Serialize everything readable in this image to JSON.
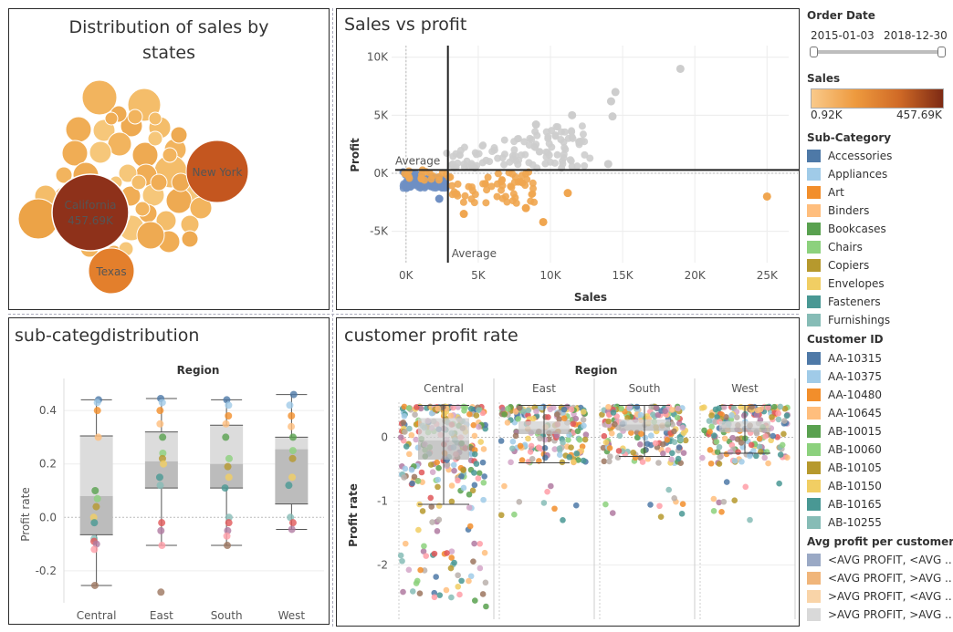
{
  "panels": {
    "bubbles": {
      "title_line1": "Distribution of sales by",
      "title_line2": "states",
      "labels": {
        "california": "California",
        "california_value": "457.69K",
        "new_york": "New York",
        "texas": "Texas"
      }
    },
    "scatter": {
      "title": "Sales vs profit",
      "xlabel": "Sales",
      "ylabel": "Profit",
      "avg_label_h": "Average",
      "avg_label_v": "Average"
    },
    "subcat": {
      "title": "sub-categdistribution",
      "header": "Region",
      "ylabel": "Profit rate"
    },
    "customer": {
      "title": "customer profit rate",
      "header": "Region",
      "ylabel": "Profit rate"
    }
  },
  "legend": {
    "order_date": {
      "title": "Order Date",
      "start": "2015-01-03",
      "end": "2018-12-30"
    },
    "sales": {
      "title": "Sales",
      "min": "0.92K",
      "max": "457.69K",
      "color_low": "#f9c98a",
      "color_high": "#7d2a14"
    },
    "subcategory": {
      "title": "Sub-Category",
      "items": [
        {
          "label": "Accessories",
          "color": "#4e79a7"
        },
        {
          "label": "Appliances",
          "color": "#a0cbe8"
        },
        {
          "label": "Art",
          "color": "#f28e2b"
        },
        {
          "label": "Binders",
          "color": "#ffbe7d"
        },
        {
          "label": "Bookcases",
          "color": "#59a14f"
        },
        {
          "label": "Chairs",
          "color": "#8cd17d"
        },
        {
          "label": "Copiers",
          "color": "#b6992d"
        },
        {
          "label": "Envelopes",
          "color": "#f1ce63"
        },
        {
          "label": "Fasteners",
          "color": "#499894"
        },
        {
          "label": "Furnishings",
          "color": "#86bcb6"
        }
      ]
    },
    "customer": {
      "title": "Customer ID",
      "items": [
        {
          "label": "AA-10315",
          "color": "#4e79a7"
        },
        {
          "label": "AA-10375",
          "color": "#a0cbe8"
        },
        {
          "label": "AA-10480",
          "color": "#f28e2b"
        },
        {
          "label": "AA-10645",
          "color": "#ffbe7d"
        },
        {
          "label": "AB-10015",
          "color": "#59a14f"
        },
        {
          "label": "AB-10060",
          "color": "#8cd17d"
        },
        {
          "label": "AB-10105",
          "color": "#b6992d"
        },
        {
          "label": "AB-10150",
          "color": "#f1ce63"
        },
        {
          "label": "AB-10165",
          "color": "#499894"
        },
        {
          "label": "AB-10255",
          "color": "#86bcb6"
        }
      ]
    },
    "avg_profit": {
      "title": "Avg profit per customer, ..",
      "items": [
        {
          "label": "<AVG PROFIT, <AVG ..",
          "color": "#9aa9c5"
        },
        {
          "label": "<AVG PROFIT, >AVG ..",
          "color": "#f0b57a"
        },
        {
          "label": ">AVG PROFIT, <AVG ..",
          "color": "#f9d4a8"
        },
        {
          "label": ">AVG PROFIT, >AVG ..",
          "color": "#d9d9d9"
        }
      ]
    }
  },
  "chart_data": [
    {
      "type": "scatter",
      "title": "Distribution of sales by states",
      "series": [
        {
          "name": "California",
          "values": [
            457.69
          ]
        },
        {
          "name": "New York",
          "values": [
            310.88
          ]
        },
        {
          "name": "Texas",
          "values": [
            170.19
          ]
        }
      ]
    },
    {
      "type": "scatter",
      "title": "Sales vs profit",
      "xlabel": "Sales",
      "ylabel": "Profit",
      "xlim": [
        -1000,
        26500
      ],
      "ylim": [
        -7700,
        11000
      ],
      "xticks": [
        "0K",
        "5K",
        "10K",
        "15K",
        "20K",
        "25K"
      ],
      "yticks": [
        "10K",
        "5K",
        "0K",
        "-5K"
      ],
      "average_x": 2900,
      "average_y": 280,
      "highlight_points": [
        {
          "x": 19000,
          "y": 9000,
          "group": ">AVG PROFIT, >AVG .."
        },
        {
          "x": 14500,
          "y": 7000,
          "group": ">AVG PROFIT, >AVG .."
        },
        {
          "x": 14200,
          "y": 6200,
          "group": ">AVG PROFIT, >AVG .."
        },
        {
          "x": 14300,
          "y": 4900,
          "group": ">AVG PROFIT, >AVG .."
        },
        {
          "x": 11500,
          "y": 5000,
          "group": ">AVG PROFIT, >AVG .."
        },
        {
          "x": 9000,
          "y": 4200,
          "group": ">AVG PROFIT, >AVG .."
        },
        {
          "x": 12000,
          "y": 2700,
          "group": ">AVG PROFIT, >AVG .."
        },
        {
          "x": 14000,
          "y": 800,
          "group": ">AVG PROFIT, >AVG .."
        },
        {
          "x": 25000,
          "y": -2000,
          "group": "<AVG PROFIT, >AVG .."
        },
        {
          "x": 9500,
          "y": -4200,
          "group": "<AVG PROFIT, >AVG .."
        },
        {
          "x": 11200,
          "y": -1700,
          "group": "<AVG PROFIT, >AVG .."
        },
        {
          "x": 8300,
          "y": -3000,
          "group": "<AVG PROFIT, >AVG .."
        },
        {
          "x": 4000,
          "y": -3500,
          "group": "<AVG PROFIT, >AVG .."
        },
        {
          "x": 2300,
          "y": -2200,
          "group": "<AVG PROFIT, <AVG .."
        }
      ]
    },
    {
      "type": "box",
      "title": "sub-categdistribution",
      "xlabel": "Region",
      "ylabel": "Profit rate",
      "categories": [
        "Central",
        "East",
        "South",
        "West"
      ],
      "ylim": [
        -0.32,
        0.52
      ],
      "yticks": [
        0.4,
        0.2,
        0.0,
        -0.2
      ],
      "box": [
        {
          "whisker_low": -0.255,
          "q1": -0.065,
          "median": 0.08,
          "q3": 0.305,
          "whisker_high": 0.44
        },
        {
          "whisker_low": -0.105,
          "q1": 0.11,
          "median": 0.21,
          "q3": 0.32,
          "whisker_high": 0.445
        },
        {
          "whisker_low": -0.105,
          "q1": 0.11,
          "median": 0.2,
          "q3": 0.345,
          "whisker_high": 0.44
        },
        {
          "whisker_low": -0.045,
          "q1": 0.05,
          "median": 0.255,
          "q3": 0.3,
          "whisker_high": 0.46
        }
      ],
      "points": [
        [
          0.44,
          0.43,
          0.4,
          0.3,
          0.1,
          0.07,
          0.04,
          0.0,
          -0.02,
          -0.08,
          -0.09,
          -0.1,
          -0.12,
          -0.255
        ],
        [
          0.445,
          0.43,
          0.4,
          0.35,
          0.3,
          0.24,
          0.22,
          0.2,
          0.15,
          0.12,
          -0.02,
          -0.05,
          -0.105,
          -0.28
        ],
        [
          0.44,
          0.42,
          0.38,
          0.35,
          0.3,
          0.22,
          0.19,
          0.15,
          0.11,
          0.0,
          -0.02,
          -0.05,
          -0.07,
          -0.105
        ],
        [
          0.46,
          0.42,
          0.38,
          0.34,
          0.3,
          0.25,
          0.22,
          0.15,
          0.12,
          0.0,
          -0.02,
          -0.045
        ]
      ]
    },
    {
      "type": "box",
      "title": "customer profit rate",
      "xlabel": "Region",
      "ylabel": "Profit rate",
      "categories": [
        "Central",
        "East",
        "South",
        "West"
      ],
      "ylim": [
        -2.85,
        0.55
      ],
      "yticks": [
        0,
        -1,
        -2
      ],
      "box": [
        {
          "whisker_low": -1.05,
          "q1": -0.35,
          "median": -0.05,
          "q3": 0.3,
          "whisker_high": 0.5
        },
        {
          "whisker_low": -0.4,
          "q1": 0.05,
          "median": 0.13,
          "q3": 0.25,
          "whisker_high": 0.5
        },
        {
          "whisker_low": -0.3,
          "q1": 0.1,
          "median": 0.2,
          "q3": 0.28,
          "whisker_high": 0.5
        },
        {
          "whisker_low": -0.25,
          "q1": 0.08,
          "median": 0.15,
          "q3": 0.25,
          "whisker_high": 0.5
        }
      ]
    }
  ]
}
